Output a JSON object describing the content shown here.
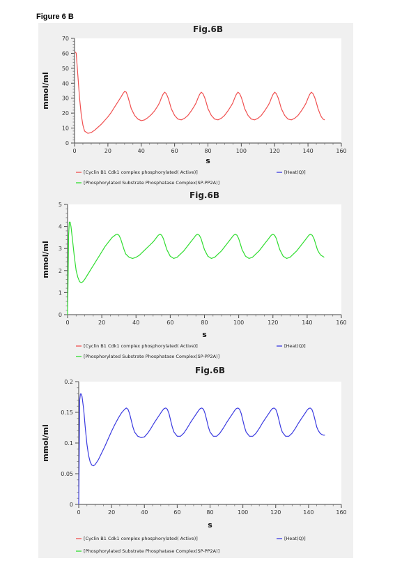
{
  "figure_label": "Figure 6 B",
  "legend": {
    "active": "[Cyclin B1 Cdk1 complex phosphorylated( Active)]",
    "heat": "[Heat(Q)]",
    "spp2a": "[Phosphorylated Substrate Phosphatase Complex(SP-PP2A)]"
  },
  "colors": {
    "active": "#f05050",
    "heat": "#3a3ae0",
    "spp2a": "#30dd30"
  },
  "chart_data": [
    {
      "type": "line",
      "title": "Fig.6B",
      "xlabel": "s",
      "ylabel": "mmol/ml",
      "xlim": [
        0,
        160
      ],
      "ylim": [
        0,
        70
      ],
      "xticks": [
        "0",
        "20",
        "40",
        "60",
        "80",
        "100",
        "120",
        "140",
        "160"
      ],
      "yticks": [
        "0",
        "10",
        "20",
        "30",
        "40",
        "50",
        "60",
        "70"
      ],
      "series": [
        {
          "name": "[Cyclin B1 Cdk1 complex phosphorylated( Active)]",
          "color": "#f05050",
          "x": [
            0.5,
            1,
            2,
            3,
            4,
            5,
            6,
            8,
            10,
            12,
            14,
            16,
            18,
            20,
            22,
            24,
            26,
            28,
            29,
            30,
            31,
            32,
            33,
            34,
            36,
            38,
            40,
            42,
            44,
            46,
            48,
            50,
            51,
            52,
            53,
            54,
            55,
            56,
            57,
            58,
            60,
            62,
            64,
            66,
            68,
            70,
            72,
            73,
            74,
            75,
            76,
            77,
            78,
            79,
            80,
            82,
            84,
            86,
            88,
            90,
            92,
            94,
            95,
            96,
            97,
            98,
            99,
            100,
            101,
            102,
            104,
            106,
            108,
            110,
            112,
            114,
            116,
            117,
            118,
            119,
            120,
            121,
            122,
            123,
            124,
            126,
            128,
            130,
            132,
            134,
            136,
            138,
            139,
            140,
            141,
            142,
            143,
            144,
            145,
            146,
            147,
            148,
            149,
            150
          ],
          "y": [
            61,
            60,
            45,
            30,
            19,
            12,
            8,
            6.5,
            7,
            8.5,
            10.5,
            12.5,
            15,
            17.5,
            20.5,
            24,
            27.5,
            31,
            33,
            34.5,
            34,
            31,
            27,
            23,
            18.5,
            16,
            15,
            15.5,
            17,
            19,
            21.5,
            25,
            27,
            30,
            32.5,
            34,
            33,
            30.5,
            27,
            23,
            18.5,
            16,
            15.5,
            16.5,
            18.5,
            21.5,
            25,
            27,
            30,
            32.5,
            34,
            33,
            30.5,
            27,
            23,
            18.5,
            16,
            15.5,
            16.5,
            18.5,
            21.5,
            25,
            27,
            30,
            32.5,
            34,
            33,
            30.5,
            27,
            23,
            18.5,
            16,
            15.5,
            16.5,
            18.5,
            21.5,
            25,
            27,
            30,
            32.5,
            34,
            33,
            30.5,
            27,
            23,
            18.5,
            16,
            15.5,
            16.5,
            18.5,
            21.5,
            25,
            27,
            30,
            32.5,
            34,
            33,
            30.5,
            27,
            23,
            20,
            17.5,
            16,
            15.5
          ]
        }
      ]
    },
    {
      "type": "line",
      "title": "Fig.6B",
      "xlabel": "s",
      "ylabel": "mmol/ml",
      "xlim": [
        0,
        160
      ],
      "ylim": [
        0,
        5
      ],
      "xticks": [
        "0",
        "20",
        "40",
        "60",
        "80",
        "100",
        "120",
        "140",
        "160"
      ],
      "yticks": [
        "0",
        "1",
        "2",
        "3",
        "4",
        "5"
      ],
      "series": [
        {
          "name": "[Phosphorylated Substrate Phosphatase Complex(SP-PP2A)]",
          "color": "#30dd30",
          "x": [
            0,
            0.3,
            0.6,
            1,
            1.5,
            2,
            3,
            4,
            5,
            6,
            7,
            8,
            9,
            10,
            12,
            14,
            16,
            18,
            20,
            22,
            24,
            26,
            28,
            29,
            30,
            31,
            32,
            33,
            34,
            36,
            38,
            40,
            42,
            44,
            46,
            48,
            50,
            51,
            52,
            53,
            54,
            55,
            56,
            57,
            58,
            60,
            62,
            64,
            66,
            68,
            70,
            72,
            73,
            74,
            75,
            76,
            77,
            78,
            79,
            80,
            82,
            84,
            86,
            88,
            90,
            92,
            94,
            95,
            96,
            97,
            98,
            99,
            100,
            101,
            102,
            104,
            106,
            108,
            110,
            112,
            114,
            116,
            117,
            118,
            119,
            120,
            121,
            122,
            123,
            124,
            126,
            128,
            130,
            132,
            134,
            136,
            138,
            139,
            140,
            141,
            142,
            143,
            144,
            145,
            146,
            147,
            148,
            149,
            150
          ],
          "y": [
            0,
            1.5,
            3.6,
            4.2,
            4.2,
            4.0,
            3.3,
            2.6,
            2.0,
            1.7,
            1.5,
            1.45,
            1.5,
            1.6,
            1.85,
            2.1,
            2.35,
            2.6,
            2.85,
            3.1,
            3.3,
            3.5,
            3.62,
            3.65,
            3.6,
            3.45,
            3.2,
            2.95,
            2.75,
            2.6,
            2.55,
            2.6,
            2.7,
            2.85,
            3.0,
            3.15,
            3.3,
            3.4,
            3.5,
            3.6,
            3.65,
            3.6,
            3.45,
            3.2,
            2.95,
            2.65,
            2.55,
            2.6,
            2.75,
            2.9,
            3.1,
            3.3,
            3.4,
            3.5,
            3.6,
            3.65,
            3.6,
            3.45,
            3.2,
            2.95,
            2.65,
            2.55,
            2.6,
            2.75,
            2.9,
            3.1,
            3.3,
            3.4,
            3.5,
            3.6,
            3.65,
            3.6,
            3.45,
            3.2,
            2.95,
            2.65,
            2.55,
            2.6,
            2.75,
            2.9,
            3.1,
            3.3,
            3.4,
            3.5,
            3.6,
            3.65,
            3.6,
            3.45,
            3.2,
            2.95,
            2.65,
            2.55,
            2.6,
            2.75,
            2.9,
            3.1,
            3.3,
            3.4,
            3.5,
            3.6,
            3.65,
            3.6,
            3.45,
            3.2,
            2.95,
            2.8,
            2.7,
            2.65,
            2.6
          ]
        }
      ]
    },
    {
      "type": "line",
      "title": "Fig.6B",
      "xlabel": "s",
      "ylabel": "mmol/ml",
      "xlim": [
        0,
        160
      ],
      "ylim": [
        0,
        0.2
      ],
      "xticks": [
        "0",
        "20",
        "40",
        "60",
        "80",
        "100",
        "120",
        "140",
        "160"
      ],
      "yticks": [
        "0",
        "0.05",
        "0.1",
        "0.15",
        "0.2"
      ],
      "series": [
        {
          "name": "[Heat(Q)]",
          "color": "#3a3ae0",
          "x": [
            0,
            0.3,
            0.6,
            1,
            1.5,
            2,
            3,
            4,
            5,
            6,
            7,
            8,
            9,
            10,
            12,
            14,
            16,
            18,
            20,
            22,
            24,
            26,
            28,
            29,
            30,
            31,
            32,
            33,
            34,
            36,
            38,
            40,
            42,
            44,
            46,
            48,
            50,
            51,
            52,
            53,
            54,
            55,
            56,
            57,
            58,
            60,
            62,
            64,
            66,
            68,
            70,
            72,
            73,
            74,
            75,
            76,
            77,
            78,
            79,
            80,
            82,
            84,
            86,
            88,
            90,
            92,
            94,
            95,
            96,
            97,
            98,
            99,
            100,
            101,
            102,
            104,
            106,
            108,
            110,
            112,
            114,
            116,
            117,
            118,
            119,
            120,
            121,
            122,
            123,
            124,
            126,
            128,
            130,
            132,
            134,
            136,
            138,
            139,
            140,
            141,
            142,
            143,
            144,
            145,
            146,
            147,
            148,
            149,
            150
          ],
          "y": [
            0,
            0.08,
            0.17,
            0.18,
            0.18,
            0.176,
            0.155,
            0.125,
            0.098,
            0.08,
            0.069,
            0.064,
            0.063,
            0.065,
            0.073,
            0.084,
            0.095,
            0.107,
            0.119,
            0.13,
            0.14,
            0.149,
            0.155,
            0.157,
            0.155,
            0.148,
            0.137,
            0.126,
            0.118,
            0.111,
            0.109,
            0.11,
            0.116,
            0.124,
            0.133,
            0.141,
            0.149,
            0.153,
            0.156,
            0.157,
            0.155,
            0.148,
            0.137,
            0.126,
            0.118,
            0.111,
            0.111,
            0.116,
            0.124,
            0.133,
            0.141,
            0.149,
            0.153,
            0.156,
            0.157,
            0.155,
            0.148,
            0.137,
            0.126,
            0.118,
            0.111,
            0.111,
            0.116,
            0.124,
            0.133,
            0.141,
            0.149,
            0.153,
            0.156,
            0.157,
            0.155,
            0.148,
            0.137,
            0.126,
            0.118,
            0.111,
            0.111,
            0.116,
            0.124,
            0.133,
            0.141,
            0.149,
            0.153,
            0.156,
            0.157,
            0.155,
            0.148,
            0.137,
            0.126,
            0.118,
            0.111,
            0.111,
            0.116,
            0.124,
            0.133,
            0.141,
            0.149,
            0.153,
            0.156,
            0.157,
            0.155,
            0.148,
            0.137,
            0.126,
            0.12,
            0.116,
            0.114,
            0.113,
            0.113
          ]
        }
      ]
    }
  ]
}
